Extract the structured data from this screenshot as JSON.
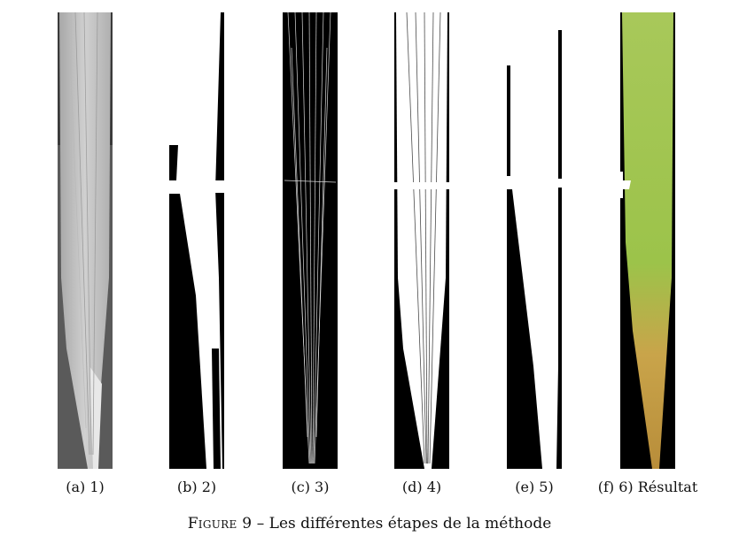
{
  "panels": [
    {
      "id": "a",
      "caption": "(a) 1)"
    },
    {
      "id": "b",
      "caption": "(b) 2)"
    },
    {
      "id": "c",
      "caption": "(c) 3)"
    },
    {
      "id": "d",
      "caption": "(d) 4)"
    },
    {
      "id": "e",
      "caption": "(e) 5)"
    },
    {
      "id": "f",
      "caption": "(f) 6) Résultat"
    }
  ],
  "figure": {
    "label": "Figure 9",
    "separator": "–",
    "text": "Les différentes étapes de la méthode"
  },
  "colors": {
    "mask_white": "#ffffff",
    "mask_black": "#000000",
    "leaf_green": "#9cc34a",
    "leaf_yellow": "#c9a44a",
    "leaf_gray": "#b9b9b9"
  }
}
